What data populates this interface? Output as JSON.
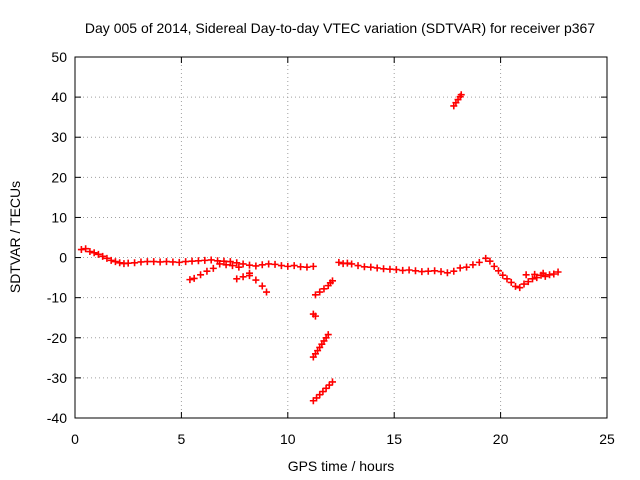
{
  "chart_data": {
    "type": "scatter",
    "title": "Day 005 of 2014, Sidereal Day-to-day VTEC variation (SDTVAR) for receiver p367",
    "xlabel": "GPS time / hours",
    "ylabel": "SDTVAR / TECUs",
    "xlim": [
      0,
      25
    ],
    "ylim": [
      -40,
      50
    ],
    "xticks": [
      0,
      5,
      10,
      15,
      20,
      25
    ],
    "yticks": [
      -40,
      -30,
      -20,
      -10,
      0,
      10,
      20,
      30,
      40,
      50
    ],
    "grid": true,
    "marker": "+",
    "color": "#ff0000",
    "series": [
      {
        "name": "SDTVAR",
        "points": [
          [
            0.3,
            2.0
          ],
          [
            0.5,
            2.2
          ],
          [
            0.7,
            1.5
          ],
          [
            0.9,
            1.2
          ],
          [
            1.1,
            0.8
          ],
          [
            1.3,
            0.3
          ],
          [
            1.5,
            -0.2
          ],
          [
            1.7,
            -0.7
          ],
          [
            1.9,
            -1.0
          ],
          [
            2.1,
            -1.3
          ],
          [
            2.3,
            -1.5
          ],
          [
            2.5,
            -1.4
          ],
          [
            2.8,
            -1.3
          ],
          [
            3.1,
            -1.1
          ],
          [
            3.4,
            -1.0
          ],
          [
            3.7,
            -1.0
          ],
          [
            4.0,
            -1.1
          ],
          [
            4.3,
            -1.0
          ],
          [
            4.6,
            -1.1
          ],
          [
            4.9,
            -1.2
          ],
          [
            5.2,
            -1.0
          ],
          [
            5.5,
            -0.9
          ],
          [
            5.8,
            -0.8
          ],
          [
            6.1,
            -0.7
          ],
          [
            6.4,
            -0.6
          ],
          [
            6.7,
            -0.8
          ],
          [
            7.0,
            -0.9
          ],
          [
            7.3,
            -1.0
          ],
          [
            7.6,
            -1.3
          ],
          [
            7.9,
            -1.6
          ],
          [
            8.2,
            -1.9
          ],
          [
            8.5,
            -2.1
          ],
          [
            8.8,
            -1.8
          ],
          [
            9.1,
            -1.6
          ],
          [
            9.4,
            -1.7
          ],
          [
            9.7,
            -2.0
          ],
          [
            10.0,
            -2.2
          ],
          [
            10.3,
            -2.0
          ],
          [
            10.6,
            -2.3
          ],
          [
            10.9,
            -2.4
          ],
          [
            11.2,
            -2.2
          ],
          [
            5.4,
            -5.5
          ],
          [
            5.6,
            -5.2
          ],
          [
            5.9,
            -4.3
          ],
          [
            6.2,
            -3.4
          ],
          [
            6.5,
            -2.7
          ],
          [
            7.6,
            -5.3
          ],
          [
            7.9,
            -4.8
          ],
          [
            8.2,
            -4.5
          ],
          [
            8.2,
            -3.9
          ],
          [
            8.5,
            -5.6
          ],
          [
            8.8,
            -7.1
          ],
          [
            9.0,
            -8.6
          ],
          [
            6.8,
            -1.6
          ],
          [
            7.1,
            -1.8
          ],
          [
            7.4,
            -2.0
          ],
          [
            7.7,
            -2.4
          ],
          [
            11.3,
            -9.3
          ],
          [
            11.5,
            -8.6
          ],
          [
            11.7,
            -7.8
          ],
          [
            11.9,
            -7.0
          ],
          [
            12.0,
            -6.3
          ],
          [
            12.1,
            -5.8
          ],
          [
            11.2,
            -14.1
          ],
          [
            11.3,
            -14.6
          ],
          [
            11.2,
            -24.8
          ],
          [
            11.3,
            -24.0
          ],
          [
            11.4,
            -23.2
          ],
          [
            11.5,
            -22.4
          ],
          [
            11.6,
            -21.6
          ],
          [
            11.7,
            -20.8
          ],
          [
            11.8,
            -20.0
          ],
          [
            11.9,
            -19.2
          ],
          [
            11.2,
            -35.7
          ],
          [
            11.35,
            -35.0
          ],
          [
            11.5,
            -34.2
          ],
          [
            11.65,
            -33.4
          ],
          [
            11.8,
            -32.6
          ],
          [
            11.95,
            -31.8
          ],
          [
            12.1,
            -31.0
          ],
          [
            12.4,
            -1.2
          ],
          [
            12.6,
            -1.5
          ],
          [
            12.8,
            -1.4
          ],
          [
            13.0,
            -1.6
          ],
          [
            13.3,
            -2.0
          ],
          [
            13.6,
            -2.3
          ],
          [
            13.9,
            -2.4
          ],
          [
            14.2,
            -2.6
          ],
          [
            14.5,
            -2.8
          ],
          [
            14.8,
            -2.9
          ],
          [
            15.1,
            -3.0
          ],
          [
            15.4,
            -3.2
          ],
          [
            15.7,
            -3.1
          ],
          [
            16.0,
            -3.3
          ],
          [
            16.3,
            -3.5
          ],
          [
            16.6,
            -3.4
          ],
          [
            16.9,
            -3.3
          ],
          [
            17.2,
            -3.5
          ],
          [
            17.5,
            -3.8
          ],
          [
            17.8,
            -3.4
          ],
          [
            18.1,
            -2.6
          ],
          [
            18.4,
            -2.4
          ],
          [
            18.7,
            -1.8
          ],
          [
            19.0,
            -1.2
          ],
          [
            19.3,
            -0.2
          ],
          [
            19.5,
            -0.9
          ],
          [
            19.7,
            -2.2
          ],
          [
            19.9,
            -3.3
          ],
          [
            20.1,
            -4.4
          ],
          [
            20.3,
            -5.3
          ],
          [
            20.5,
            -6.2
          ],
          [
            20.7,
            -7.2
          ],
          [
            20.9,
            -7.5
          ],
          [
            21.1,
            -6.6
          ],
          [
            21.3,
            -6.0
          ],
          [
            21.5,
            -5.3
          ],
          [
            21.7,
            -5.0
          ],
          [
            21.9,
            -4.4
          ],
          [
            22.1,
            -4.7
          ],
          [
            22.3,
            -4.3
          ],
          [
            22.5,
            -4.1
          ],
          [
            22.7,
            -3.6
          ],
          [
            21.2,
            -4.3
          ],
          [
            21.6,
            -4.2
          ],
          [
            22.0,
            -3.9
          ],
          [
            17.8,
            37.8
          ],
          [
            17.9,
            38.6
          ],
          [
            18.0,
            39.4
          ],
          [
            18.1,
            40.1
          ],
          [
            18.15,
            40.6
          ]
        ]
      }
    ]
  }
}
